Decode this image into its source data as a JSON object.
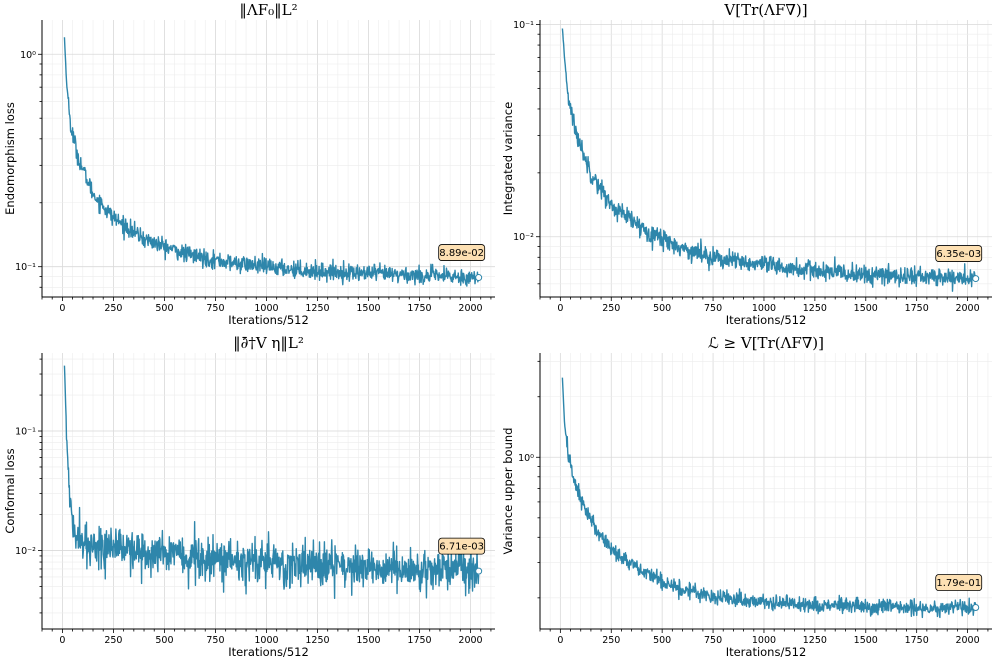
{
  "chart_data": [
    {
      "type": "line",
      "title": "‖ΛF₀‖L²",
      "xlabel": "Iterations/512",
      "ylabel": "Endomorphism loss",
      "yscale": "log",
      "xlim": [
        -100,
        2120
      ],
      "ylim": [
        0.072,
        1.45
      ],
      "xticks": [
        0,
        250,
        500,
        750,
        1000,
        1250,
        1500,
        1750,
        2000
      ],
      "xtick_labels": [
        "0",
        "250",
        "500",
        "750",
        "1000",
        "1250",
        "1500",
        "1750",
        "2000"
      ],
      "yticks": [
        0.1,
        1
      ],
      "ytick_labels": [
        "10⁻¹",
        "10⁰"
      ],
      "series": [
        {
          "name": "Endomorphism loss",
          "color": "#2e86ab",
          "keypoints": [
            [
              10,
              1.2
            ],
            [
              20,
              0.75
            ],
            [
              40,
              0.46
            ],
            [
              80,
              0.32
            ],
            [
              150,
              0.22
            ],
            [
              250,
              0.17
            ],
            [
              400,
              0.135
            ],
            [
              600,
              0.115
            ],
            [
              800,
              0.105
            ],
            [
              1000,
              0.1
            ],
            [
              1250,
              0.095
            ],
            [
              1500,
              0.093
            ],
            [
              1750,
              0.091
            ],
            [
              2040,
              0.0889
            ]
          ],
          "noise": 0.04
        }
      ],
      "annotation": {
        "text": "8.89e-02",
        "x": 2040,
        "y": 0.0889
      }
    },
    {
      "type": "line",
      "title": "V[Tr(ΛF∇)]",
      "xlabel": "Iterations/512",
      "ylabel": "Integrated variance",
      "yscale": "log",
      "xlim": [
        -100,
        2120
      ],
      "ylim": [
        0.0052,
        0.105
      ],
      "xticks": [
        0,
        250,
        500,
        750,
        1000,
        1250,
        1500,
        1750,
        2000
      ],
      "xtick_labels": [
        "0",
        "250",
        "500",
        "750",
        "1000",
        "1250",
        "1500",
        "1750",
        "2000"
      ],
      "yticks": [
        0.01,
        0.1
      ],
      "ytick_labels": [
        "10⁻²",
        "10⁻¹"
      ],
      "series": [
        {
          "name": "Integrated variance",
          "color": "#2e86ab",
          "keypoints": [
            [
              10,
              0.095
            ],
            [
              20,
              0.07
            ],
            [
              40,
              0.045
            ],
            [
              80,
              0.03
            ],
            [
              150,
              0.02
            ],
            [
              250,
              0.014
            ],
            [
              400,
              0.011
            ],
            [
              600,
              0.0088
            ],
            [
              800,
              0.0078
            ],
            [
              1000,
              0.0073
            ],
            [
              1250,
              0.0069
            ],
            [
              1500,
              0.0066
            ],
            [
              1750,
              0.0065
            ],
            [
              2040,
              0.00635
            ]
          ],
          "noise": 0.045
        }
      ],
      "annotation": {
        "text": "6.35e-03",
        "x": 2040,
        "y": 0.00635
      }
    },
    {
      "type": "line",
      "title": "‖∂̄†V η‖L²",
      "xlabel": "Iterations/512",
      "ylabel": "Conformal loss",
      "yscale": "log",
      "xlim": [
        -100,
        2120
      ],
      "ylim": [
        0.0022,
        0.45
      ],
      "xticks": [
        0,
        250,
        500,
        750,
        1000,
        1250,
        1500,
        1750,
        2000
      ],
      "xtick_labels": [
        "0",
        "250",
        "500",
        "750",
        "1000",
        "1250",
        "1500",
        "1750",
        "2000"
      ],
      "yticks": [
        0.01,
        0.1
      ],
      "ytick_labels": [
        "10⁻²",
        "10⁻¹"
      ],
      "series": [
        {
          "name": "Conformal loss",
          "color": "#2e86ab",
          "keypoints": [
            [
              10,
              0.35
            ],
            [
              20,
              0.1
            ],
            [
              30,
              0.04
            ],
            [
              50,
              0.018
            ],
            [
              80,
              0.012
            ],
            [
              150,
              0.011
            ],
            [
              300,
              0.0105
            ],
            [
              500,
              0.0095
            ],
            [
              750,
              0.009
            ],
            [
              1000,
              0.008
            ],
            [
              1250,
              0.0076
            ],
            [
              1500,
              0.0074
            ],
            [
              1750,
              0.007
            ],
            [
              2040,
              0.00671
            ]
          ],
          "noise": 0.16
        }
      ],
      "annotation": {
        "text": "6.71e-03",
        "x": 2040,
        "y": 0.00671
      }
    },
    {
      "type": "line",
      "title": "ℒ ≥ V[Tr(ΛF∇)]",
      "xlabel": "Iterations/512",
      "ylabel": "Variance upper bound",
      "yscale": "log",
      "xlim": [
        -100,
        2120
      ],
      "ylim": [
        0.14,
        3.3
      ],
      "xticks": [
        0,
        250,
        500,
        750,
        1000,
        1250,
        1500,
        1750,
        2000
      ],
      "xtick_labels": [
        "0",
        "250",
        "500",
        "750",
        "1000",
        "1250",
        "1500",
        "1750",
        "2000"
      ],
      "yticks": [
        1
      ],
      "ytick_labels": [
        "10⁰"
      ],
      "series": [
        {
          "name": "Variance upper bound",
          "color": "#2e86ab",
          "keypoints": [
            [
              10,
              2.5
            ],
            [
              20,
              1.5
            ],
            [
              40,
              1.0
            ],
            [
              80,
              0.7
            ],
            [
              150,
              0.48
            ],
            [
              250,
              0.35
            ],
            [
              400,
              0.27
            ],
            [
              600,
              0.22
            ],
            [
              800,
              0.2
            ],
            [
              1000,
              0.19
            ],
            [
              1250,
              0.185
            ],
            [
              1500,
              0.18
            ],
            [
              1750,
              0.178
            ],
            [
              2040,
              0.179
            ]
          ],
          "noise": 0.04
        }
      ],
      "annotation": {
        "text": "1.79e-01",
        "x": 2040,
        "y": 0.179
      }
    }
  ]
}
